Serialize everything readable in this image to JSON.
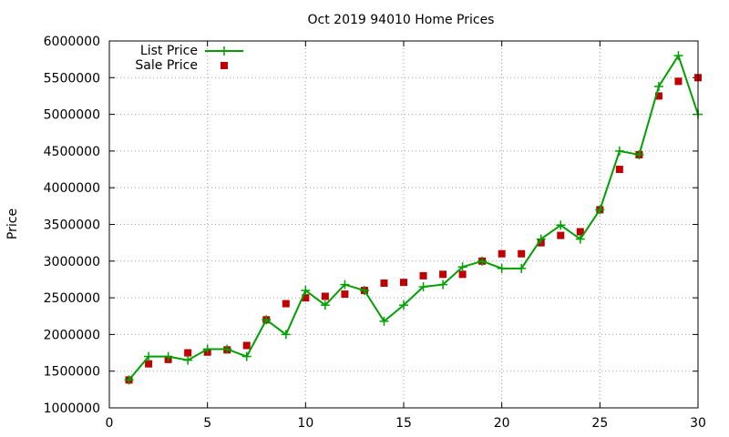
{
  "chart_data": {
    "type": "line",
    "title": "Oct 2019 94010 Home Prices",
    "xlabel": "",
    "ylabel": "Price",
    "xlim": [
      0,
      30
    ],
    "ylim": [
      1000000,
      6000000
    ],
    "x_ticks": [
      0,
      5,
      10,
      15,
      20,
      25,
      30
    ],
    "y_ticks": [
      1000000,
      1500000,
      2000000,
      2500000,
      3000000,
      3500000,
      4000000,
      4500000,
      5000000,
      5500000,
      6000000
    ],
    "grid": true,
    "legend_position": "top-left",
    "x": [
      1,
      2,
      3,
      4,
      5,
      6,
      7,
      8,
      9,
      10,
      11,
      12,
      13,
      14,
      15,
      16,
      17,
      18,
      19,
      20,
      21,
      22,
      23,
      24,
      25,
      26,
      27,
      28,
      29,
      30
    ],
    "series": [
      {
        "name": "List Price",
        "style": "line+cross",
        "color": "#00a000",
        "values": [
          1380000,
          1700000,
          1700000,
          1650000,
          1800000,
          1800000,
          1700000,
          2200000,
          2000000,
          2600000,
          2400000,
          2680000,
          2600000,
          2180000,
          2400000,
          2650000,
          2680000,
          2920000,
          3000000,
          2900000,
          2900000,
          3300000,
          3490000,
          3300000,
          3700000,
          4500000,
          4450000,
          5380000,
          5800000,
          5000000
        ]
      },
      {
        "name": "Sale Price",
        "style": "square",
        "color": "#c00000",
        "values": [
          1380000,
          1600000,
          1660000,
          1750000,
          1760000,
          1790000,
          1850000,
          2200000,
          2420000,
          2500000,
          2520000,
          2550000,
          2600000,
          2700000,
          2710000,
          2800000,
          2820000,
          2820000,
          3000000,
          3100000,
          3100000,
          3250000,
          3350000,
          3400000,
          3700000,
          4250000,
          4450000,
          5250000,
          5450000,
          5500000
        ]
      }
    ]
  }
}
